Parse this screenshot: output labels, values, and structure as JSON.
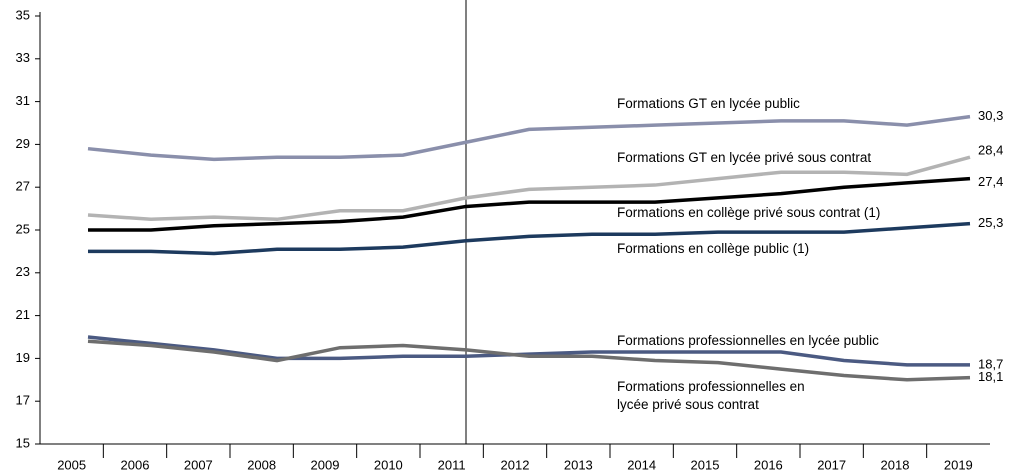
{
  "chart_data": {
    "type": "line",
    "categories": [
      "2005",
      "2006",
      "2007",
      "2008",
      "2009",
      "2010",
      "2011",
      "2012",
      "2013",
      "2014",
      "2015",
      "2016",
      "2017",
      "2018",
      "2019"
    ],
    "ylim": [
      15,
      35
    ],
    "yticks": [
      15,
      17,
      19,
      21,
      23,
      25,
      27,
      29,
      31,
      33,
      35
    ],
    "series": [
      {
        "name": "Formations GT en lycée public",
        "color": "#8a8fab",
        "values": [
          28.8,
          28.5,
          28.3,
          28.4,
          28.4,
          28.5,
          29.1,
          29.7,
          29.8,
          29.9,
          30.0,
          30.1,
          30.1,
          29.9,
          30.3
        ],
        "value_labels": [
          null,
          null,
          null,
          null,
          null,
          null,
          null,
          null,
          null,
          null,
          null,
          null,
          null,
          null,
          "30,3"
        ]
      },
      {
        "name": "Formations GT en lycée privé sous contrat",
        "color": "#b3b3b3",
        "values": [
          25.7,
          25.5,
          25.6,
          25.5,
          25.9,
          25.9,
          26.5,
          26.9,
          27.0,
          27.1,
          27.4,
          27.7,
          27.7,
          27.6,
          28.4
        ],
        "value_labels": [
          null,
          null,
          null,
          null,
          null,
          null,
          null,
          null,
          null,
          null,
          null,
          null,
          null,
          null,
          "28,4"
        ]
      },
      {
        "name": "Formations en collège privé sous contrat (1)",
        "color": "#000000",
        "values": [
          25.0,
          25.0,
          25.2,
          25.3,
          25.4,
          25.6,
          26.1,
          26.3,
          26.3,
          26.3,
          26.5,
          26.7,
          27.0,
          27.2,
          27.4
        ],
        "value_labels": [
          null,
          null,
          null,
          null,
          null,
          null,
          null,
          null,
          null,
          null,
          null,
          null,
          null,
          null,
          "27,4"
        ]
      },
      {
        "name": "Formations en collège public (1)",
        "color": "#1d3a5e",
        "values": [
          24.0,
          24.0,
          23.9,
          24.1,
          24.1,
          24.2,
          24.5,
          24.7,
          24.8,
          24.8,
          24.9,
          24.9,
          24.9,
          25.1,
          25.3
        ],
        "value_labels": [
          null,
          null,
          null,
          null,
          null,
          null,
          null,
          null,
          null,
          null,
          null,
          null,
          null,
          null,
          "25,3"
        ]
      },
      {
        "name": "Formations professionnelles en lycée public",
        "color": "#4b5a82",
        "values": [
          20.0,
          19.7,
          19.4,
          19.0,
          19.0,
          19.1,
          19.1,
          19.2,
          19.3,
          19.3,
          19.3,
          19.3,
          18.9,
          18.7,
          18.7
        ],
        "value_labels": [
          null,
          null,
          null,
          null,
          null,
          null,
          null,
          null,
          null,
          null,
          null,
          null,
          null,
          null,
          "18,7"
        ]
      },
      {
        "name": "Formations professionnelles en lycée privé sous contrat",
        "color": "#6e6e6e",
        "values": [
          19.8,
          19.6,
          19.3,
          18.9,
          19.5,
          19.6,
          19.4,
          19.1,
          19.1,
          18.9,
          18.8,
          18.5,
          18.2,
          18.0,
          18.1
        ],
        "value_labels": [
          null,
          null,
          null,
          null,
          null,
          null,
          null,
          null,
          null,
          null,
          null,
          null,
          null,
          null,
          "18,1"
        ]
      }
    ]
  }
}
